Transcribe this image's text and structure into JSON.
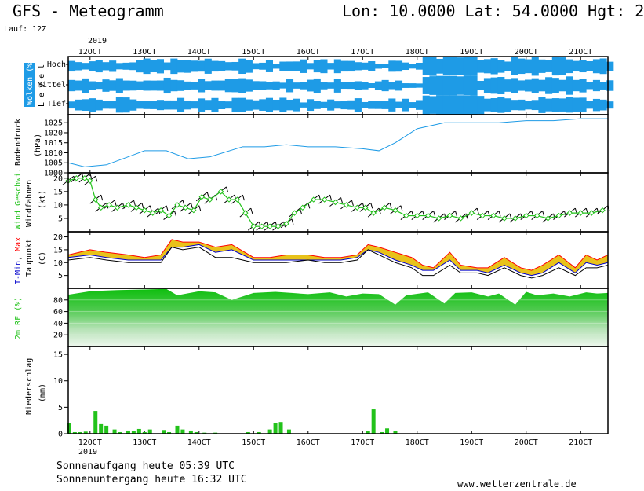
{
  "header": {
    "title": "GFS - Meteogramm",
    "location": "Lon: 10.0000 Lat: 54.0000 Hgt: 2",
    "run": "Lauf: 12Z"
  },
  "footer": {
    "sunrise": "Sonnenaufgang heute 05:39 UTC",
    "sunset": "Sonnenuntergang heute 16:32 UTC",
    "website": "www.wetterzentrale.de"
  },
  "colors": {
    "cloud": "#1e9be6",
    "pressure": "#1e9be6",
    "wind_speed": "#22c21a",
    "tmin": "#0000cc",
    "tmax": "#ff0000",
    "dewpoint": "#000000",
    "temp_band": "#e8c21a",
    "humidity": "#22c21a",
    "precip": "#22c21a"
  },
  "chart_data": [
    {
      "type": "heatmap",
      "panel": "clouds",
      "ylabel": "Wolken (%)",
      "ylabel2": "L e v e l",
      "levels": [
        "Hoch",
        "Mittel",
        "Tief"
      ],
      "year_label": "2019",
      "x_ticks": [
        "12OCT",
        "13OCT",
        "14OCT",
        "15OCT",
        "16OCT",
        "17OCT",
        "18OCT",
        "19OCT",
        "20OCT",
        "21OCT"
      ],
      "x_day_start": 11.6,
      "x_day_end": 21.5,
      "day_cover": [
        0.55,
        0.6,
        0.55,
        0.5,
        0.55,
        0.45,
        0.95,
        0.7,
        0.75,
        0.6
      ]
    },
    {
      "type": "line",
      "panel": "pressure",
      "ylabel": "Bodendruck",
      "ylabel2": "(hPa)",
      "yticks": [
        1000,
        1005,
        1010,
        1015,
        1020,
        1025
      ],
      "ylim": [
        1000,
        1029
      ],
      "x_day": [
        11.6,
        11.9,
        12.3,
        12.8,
        13.0,
        13.4,
        13.8,
        14.2,
        14.8,
        15.2,
        15.6,
        16.0,
        16.5,
        17.0,
        17.3,
        17.6,
        18.0,
        18.5,
        19.0,
        19.5,
        20.0,
        20.5,
        21.0,
        21.5
      ],
      "values": [
        1005,
        1003,
        1004,
        1009,
        1011,
        1011,
        1007,
        1008,
        1013,
        1013,
        1014,
        1013,
        1013,
        1012,
        1011,
        1015,
        1022,
        1025,
        1025,
        1025,
        1026,
        1026,
        1027,
        1027
      ]
    },
    {
      "type": "line",
      "panel": "wind",
      "ylabel": "Wind Geschwi.",
      "ylabel2": "Windfahnen",
      "ylabel3": "(kt)",
      "yticks": [
        5,
        10,
        15,
        20
      ],
      "ylim": [
        0,
        22
      ],
      "x_day": [
        11.6,
        11.75,
        11.9,
        12.0,
        12.1,
        12.2,
        12.35,
        12.5,
        12.7,
        12.85,
        13.0,
        13.15,
        13.3,
        13.45,
        13.6,
        13.75,
        13.9,
        14.05,
        14.2,
        14.4,
        14.55,
        14.7,
        14.85,
        15.0,
        15.15,
        15.3,
        15.45,
        15.6,
        15.75,
        15.9,
        16.1,
        16.3,
        16.5,
        16.7,
        16.9,
        17.05,
        17.2,
        17.4,
        17.6,
        17.8,
        18.0,
        18.2,
        18.4,
        18.6,
        18.8,
        19.0,
        19.2,
        19.4,
        19.6,
        19.8,
        20.0,
        20.2,
        20.4,
        20.6,
        20.8,
        21.0,
        21.2,
        21.4
      ],
      "values": [
        19,
        20,
        20,
        19,
        12,
        9,
        10,
        9,
        10,
        9,
        8,
        7,
        8,
        6,
        10,
        9,
        8,
        13,
        12,
        15,
        12,
        12,
        7,
        2,
        2,
        2,
        2,
        3,
        7,
        9,
        12,
        12,
        11,
        10,
        9,
        9,
        7,
        9,
        8,
        6,
        6,
        6,
        5,
        6,
        5,
        7,
        6,
        6,
        5,
        5,
        6,
        6,
        5,
        6,
        7,
        7,
        7,
        8
      ]
    },
    {
      "type": "area",
      "panel": "temperature",
      "ylabel_parts": [
        "T-Min",
        ", ",
        "Max"
      ],
      "ylabel2": "Taupunkt",
      "ylabel3": "(C)",
      "yticks": [
        5,
        10,
        15,
        20
      ],
      "ylim": [
        0,
        22
      ],
      "x_day": [
        11.6,
        12.0,
        12.3,
        12.7,
        13.0,
        13.3,
        13.5,
        13.7,
        14.0,
        14.3,
        14.6,
        15.0,
        15.3,
        15.6,
        16.0,
        16.3,
        16.6,
        16.9,
        17.1,
        17.3,
        17.6,
        17.9,
        18.1,
        18.3,
        18.6,
        18.8,
        19.1,
        19.3,
        19.6,
        19.9,
        20.1,
        20.3,
        20.6,
        20.9,
        21.1,
        21.3,
        21.5
      ],
      "tmax": [
        13,
        15,
        14,
        13,
        12,
        13,
        19,
        18,
        18,
        16,
        17,
        12,
        12,
        13,
        13,
        12,
        12,
        13,
        17,
        16,
        14,
        12,
        9,
        8,
        14,
        9,
        8,
        8,
        12,
        8,
        7,
        9,
        13,
        8,
        13,
        11,
        13
      ],
      "tmin": [
        12,
        13,
        12,
        11,
        11,
        11,
        16,
        16,
        17,
        14,
        15,
        11,
        11,
        11,
        11,
        11,
        11,
        12,
        15,
        14,
        11,
        9,
        7,
        7,
        11,
        7,
        7,
        6,
        9,
        6,
        5,
        6,
        10,
        6,
        10,
        9,
        10
      ],
      "dewpoint": [
        11,
        12,
        11,
        10,
        10,
        10,
        16,
        15,
        16,
        12,
        12,
        10,
        10,
        10,
        11,
        10,
        10,
        11,
        15,
        13,
        10,
        8,
        5,
        5,
        9,
        6,
        6,
        5,
        8,
        5,
        4,
        5,
        8,
        5,
        8,
        8,
        9
      ]
    },
    {
      "type": "area",
      "panel": "humidity",
      "ylabel": "2m RF (%)",
      "yticks": [
        20,
        40,
        60,
        80
      ],
      "ylim": [
        0,
        100
      ],
      "x_day": [
        11.6,
        12.0,
        12.5,
        13.0,
        13.4,
        13.6,
        14.0,
        14.3,
        14.6,
        15.0,
        15.4,
        15.7,
        16.0,
        16.4,
        16.7,
        17.0,
        17.3,
        17.6,
        17.8,
        18.2,
        18.5,
        18.7,
        19.0,
        19.3,
        19.5,
        19.8,
        20.0,
        20.2,
        20.5,
        20.8,
        21.1,
        21.3,
        21.5
      ],
      "values": [
        89,
        95,
        97,
        98,
        99,
        88,
        95,
        93,
        80,
        92,
        94,
        92,
        90,
        93,
        86,
        91,
        90,
        72,
        88,
        93,
        74,
        92,
        93,
        86,
        91,
        72,
        94,
        88,
        91,
        86,
        93,
        91,
        92
      ]
    },
    {
      "type": "bar",
      "panel": "precipitation",
      "ylabel": "Niederschlag",
      "ylabel2": "(mm)",
      "yticks": [
        0,
        5,
        10,
        15
      ],
      "ylim": [
        0,
        16.5
      ],
      "year_label": "2019",
      "x_ticks": [
        "12OCT",
        "13OCT",
        "14OCT",
        "15OCT",
        "16OCT",
        "17OCT",
        "18OCT",
        "19OCT",
        "20OCT",
        "21OCT"
      ],
      "x_day": [
        11.62,
        11.72,
        11.82,
        11.92,
        12.1,
        12.2,
        12.3,
        12.45,
        12.55,
        12.7,
        12.8,
        12.9,
        13.0,
        13.1,
        13.35,
        13.45,
        13.6,
        13.7,
        13.85,
        13.95,
        14.1,
        14.3,
        14.9,
        15.1,
        15.3,
        15.4,
        15.5,
        15.65,
        17.1,
        17.2,
        17.35,
        17.45,
        17.6
      ],
      "values": [
        2.0,
        0.3,
        0.3,
        0.4,
        4.3,
        1.8,
        1.5,
        0.8,
        0.3,
        0.6,
        0.5,
        0.9,
        0.3,
        0.8,
        0.7,
        0.3,
        1.5,
        0.8,
        0.6,
        0.3,
        0.2,
        0.2,
        0.3,
        0.3,
        0.8,
        2.0,
        2.2,
        0.8,
        0.5,
        4.6,
        0.3,
        1.0,
        0.5
      ]
    }
  ]
}
